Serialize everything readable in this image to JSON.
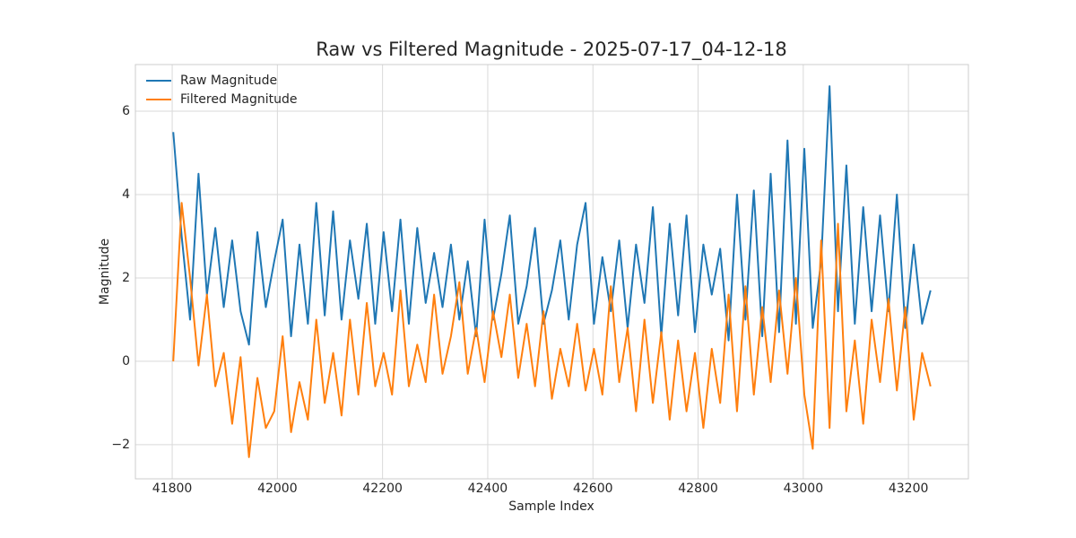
{
  "chart_data": {
    "type": "line",
    "title": "Raw vs Filtered Magnitude - 2025-07-17_04-12-18",
    "xlabel": "Sample Index",
    "ylabel": "Magnitude",
    "x": [
      41802,
      41818,
      41834,
      41850,
      41866,
      41882,
      41898,
      41914,
      41930,
      41946,
      41962,
      41978,
      41994,
      42010,
      42026,
      42042,
      42058,
      42074,
      42090,
      42106,
      42122,
      42138,
      42154,
      42170,
      42186,
      42202,
      42218,
      42234,
      42250,
      42266,
      42282,
      42298,
      42314,
      42330,
      42346,
      42362,
      42378,
      42394,
      42410,
      42426,
      42442,
      42458,
      42474,
      42490,
      42506,
      42522,
      42538,
      42554,
      42570,
      42586,
      42602,
      42618,
      42634,
      42650,
      42666,
      42682,
      42698,
      42714,
      42730,
      42746,
      42762,
      42778,
      42794,
      42810,
      42826,
      42842,
      42858,
      42874,
      42890,
      42906,
      42922,
      42938,
      42954,
      42970,
      42986,
      43002,
      43018,
      43034,
      43050,
      43066,
      43082,
      43098,
      43114,
      43130,
      43146,
      43162,
      43178,
      43194,
      43210,
      43226,
      43242
    ],
    "series": [
      {
        "name": "Raw Magnitude",
        "color": "#1f77b4",
        "values": [
          5.5,
          3.0,
          1.0,
          4.5,
          1.6,
          3.2,
          1.3,
          2.9,
          1.2,
          0.4,
          3.1,
          1.3,
          2.4,
          3.4,
          0.6,
          2.8,
          0.9,
          3.8,
          1.1,
          3.6,
          1.0,
          2.9,
          1.5,
          3.3,
          0.9,
          3.1,
          1.2,
          3.4,
          0.9,
          3.2,
          1.4,
          2.6,
          1.3,
          2.8,
          1.0,
          2.4,
          0.6,
          3.4,
          1.0,
          2.1,
          3.5,
          0.9,
          1.8,
          3.2,
          0.9,
          1.7,
          2.9,
          1.0,
          2.8,
          3.8,
          0.9,
          2.5,
          1.2,
          2.9,
          0.8,
          2.8,
          1.4,
          3.7,
          0.6,
          3.3,
          1.1,
          3.5,
          0.7,
          2.8,
          1.6,
          2.7,
          0.5,
          4.0,
          1.0,
          4.1,
          0.6,
          4.5,
          0.7,
          5.3,
          0.9,
          5.1,
          0.8,
          2.4,
          6.6,
          1.2,
          4.7,
          0.9,
          3.7,
          1.2,
          3.5,
          1.2,
          4.0,
          0.8,
          2.8,
          0.9,
          1.7
        ]
      },
      {
        "name": "Filtered Magnitude",
        "color": "#ff7f0e",
        "values": [
          0.0,
          3.8,
          2.0,
          -0.1,
          1.6,
          -0.6,
          0.2,
          -1.5,
          0.1,
          -2.3,
          -0.4,
          -1.6,
          -1.2,
          0.6,
          -1.7,
          -0.5,
          -1.4,
          1.0,
          -1.0,
          0.2,
          -1.3,
          1.0,
          -0.8,
          1.4,
          -0.6,
          0.2,
          -0.8,
          1.7,
          -0.6,
          0.4,
          -0.5,
          1.6,
          -0.3,
          0.6,
          1.9,
          -0.3,
          0.8,
          -0.5,
          1.2,
          0.1,
          1.6,
          -0.4,
          0.9,
          -0.6,
          1.2,
          -0.9,
          0.3,
          -0.6,
          0.9,
          -0.7,
          0.3,
          -0.8,
          1.8,
          -0.5,
          0.8,
          -1.2,
          1.0,
          -1.0,
          0.7,
          -1.4,
          0.5,
          -1.2,
          0.2,
          -1.6,
          0.3,
          -1.0,
          1.6,
          -1.2,
          1.8,
          -0.8,
          1.3,
          -0.5,
          1.7,
          -0.3,
          2.0,
          -0.8,
          -2.1,
          2.9,
          -1.6,
          3.3,
          -1.2,
          0.5,
          -1.5,
          1.0,
          -0.5,
          1.5,
          -0.7,
          1.3,
          -1.4,
          0.2,
          -0.6
        ]
      }
    ],
    "xlim": [
      41730,
      43314
    ],
    "xticks": [
      41800,
      42000,
      42200,
      42400,
      42600,
      42800,
      43000,
      43200
    ],
    "ylim": [
      -2.82,
      7.12
    ],
    "yticks": [
      {
        "value": -2,
        "label": "−2"
      },
      0,
      2,
      4,
      6
    ],
    "grid": true,
    "legend": "upper-left"
  }
}
